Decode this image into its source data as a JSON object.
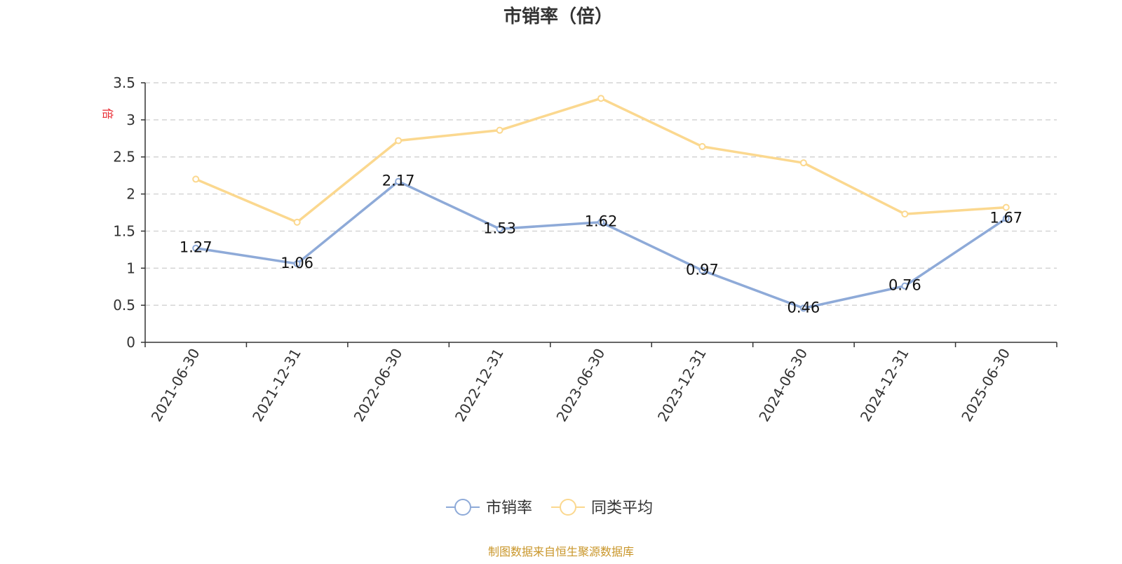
{
  "chart_data": {
    "type": "line",
    "title": "市销率（倍）",
    "ylabel": "倍",
    "xlabel": "",
    "categories": [
      "2021-06-30",
      "2021-12-31",
      "2022-06-30",
      "2022-12-31",
      "2023-06-30",
      "2023-12-31",
      "2024-06-30",
      "2024-12-31",
      "2025-06-30"
    ],
    "ylim": [
      0,
      3.5
    ],
    "yticks": [
      "0",
      "0.5",
      "1",
      "1.5",
      "2",
      "2.5",
      "3",
      "3.5"
    ],
    "grid": true,
    "legend_position": "bottom",
    "series": [
      {
        "name": "市销率",
        "values": [
          1.27,
          1.06,
          2.17,
          1.53,
          1.62,
          0.97,
          0.46,
          0.76,
          1.67
        ],
        "labels": [
          "1.27",
          "1.06",
          "2.17",
          "1.53",
          "1.62",
          "0.97",
          "0.46",
          "0.76",
          "1.67"
        ],
        "color": "#8eaad8",
        "show_labels": true
      },
      {
        "name": "同类平均",
        "values": [
          2.2,
          1.62,
          2.72,
          2.86,
          3.29,
          2.64,
          2.42,
          1.73,
          1.82
        ],
        "color": "#fbd88f",
        "show_labels": false
      }
    ]
  },
  "source_note": "制图数据来自恒生聚源数据库",
  "colors": {
    "title": "#333333",
    "ylabel": "#e8262d",
    "source_note": "#c9962a",
    "grid": "#cccccc",
    "axis": "#333333"
  }
}
